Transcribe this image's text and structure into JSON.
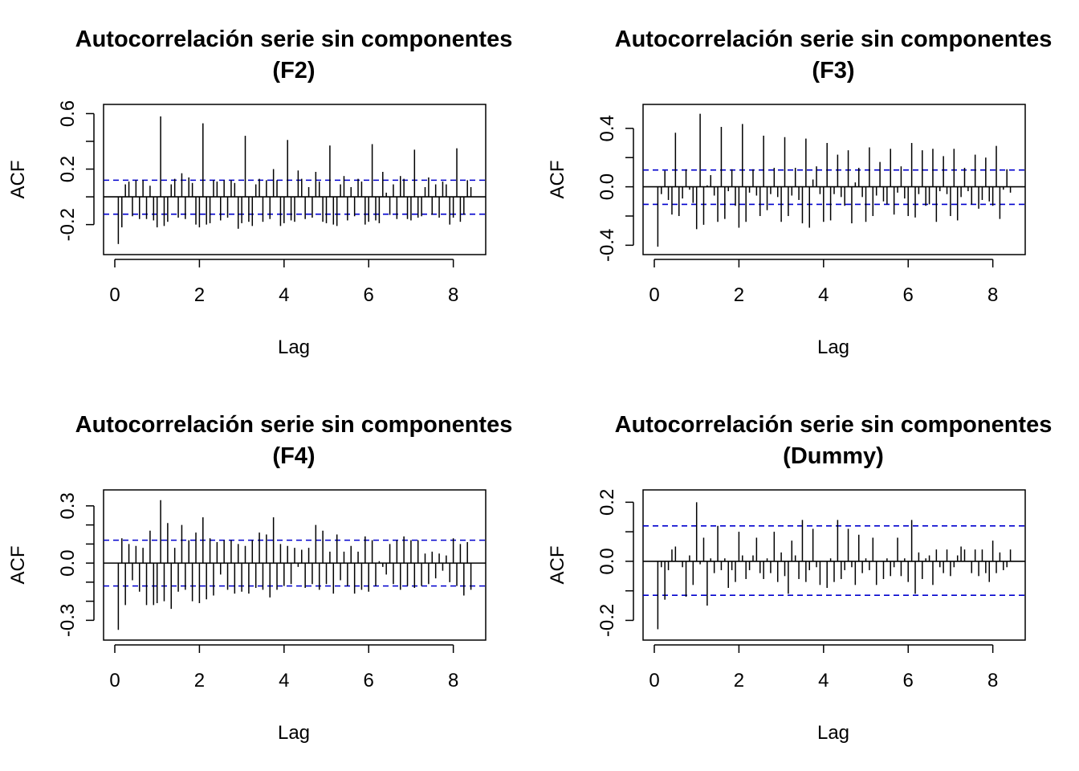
{
  "colors": {
    "bars": "#000000",
    "confidence_band": "#0000CD",
    "background": "#ffffff"
  },
  "chart_data": [
    {
      "type": "bar",
      "title": "Autocorrelación serie sin componentes",
      "subtitle": "(F2)",
      "xlabel": "Lag",
      "ylabel": "ACF",
      "xlim": [
        0,
        8.5
      ],
      "ylim": [
        -0.37,
        0.62
      ],
      "xticks": [
        0,
        2,
        4,
        6,
        8
      ],
      "xtick_labels": [
        "0",
        "2",
        "4",
        "6",
        "8"
      ],
      "yticks": [
        -0.2,
        0.2,
        0.6
      ],
      "ytick_labels": [
        "-0.2",
        "0.2",
        "0.6"
      ],
      "yticks_minor": [
        0.0,
        0.4
      ],
      "confidence_band": [
        -0.125,
        0.12
      ],
      "lags_step": 0.08333,
      "values": [
        -0.34,
        -0.22,
        0.09,
        0.11,
        -0.14,
        0.12,
        -0.16,
        0.12,
        -0.16,
        0.08,
        -0.17,
        -0.22,
        0.58,
        -0.21,
        -0.18,
        0.09,
        0.13,
        -0.15,
        0.17,
        -0.16,
        0.14,
        0.1,
        -0.2,
        -0.22,
        0.53,
        -0.2,
        -0.19,
        0.12,
        0.11,
        -0.17,
        0.12,
        -0.15,
        0.12,
        0.1,
        -0.23,
        -0.19,
        0.44,
        -0.18,
        -0.21,
        0.09,
        0.13,
        -0.18,
        0.12,
        -0.16,
        0.2,
        0.12,
        -0.21,
        -0.19,
        0.41,
        -0.17,
        -0.18,
        0.19,
        0.13,
        -0.16,
        0.07,
        -0.15,
        0.18,
        0.11,
        -0.18,
        -0.19,
        0.37,
        -0.2,
        -0.21,
        0.09,
        0.15,
        -0.17,
        0.07,
        -0.14,
        0.13,
        0.11,
        -0.2,
        -0.18,
        0.38,
        -0.17,
        -0.19,
        0.18,
        0.03,
        -0.13,
        0.09,
        -0.16,
        0.15,
        0.13,
        -0.16,
        -0.17,
        0.34,
        -0.15,
        -0.14,
        0.07,
        0.14,
        -0.13,
        0.09,
        -0.15,
        0.11,
        0.09,
        -0.2,
        -0.15,
        0.35,
        -0.18,
        -0.13,
        0.12,
        0.07
      ]
    },
    {
      "type": "bar",
      "title": "Autocorrelación serie sin componentes",
      "subtitle": "(F3)",
      "xlabel": "Lag",
      "ylabel": "ACF",
      "xlim": [
        0,
        8.5
      ],
      "ylim": [
        -0.42,
        0.52
      ],
      "xticks": [
        0,
        2,
        4,
        6,
        8
      ],
      "xtick_labels": [
        "0",
        "2",
        "4",
        "6",
        "8"
      ],
      "yticks": [
        -0.4,
        0.0,
        0.4
      ],
      "ytick_labels": [
        "-0.4",
        "0.0",
        "0.4"
      ],
      "yticks_minor": [
        -0.2,
        0.2
      ],
      "confidence_band": [
        -0.12,
        0.115
      ],
      "lags_step": 0.08333,
      "values": [
        -0.41,
        -0.05,
        0.11,
        -0.09,
        -0.19,
        0.37,
        -0.2,
        -0.08,
        0.12,
        -0.02,
        -0.11,
        -0.29,
        0.5,
        -0.26,
        0.01,
        0.08,
        -0.06,
        -0.24,
        0.41,
        -0.22,
        -0.03,
        0.12,
        -0.13,
        -0.28,
        0.43,
        -0.24,
        -0.04,
        0.12,
        -0.06,
        -0.2,
        0.35,
        -0.16,
        -0.05,
        0.13,
        -0.07,
        -0.24,
        0.34,
        -0.2,
        -0.06,
        0.13,
        -0.09,
        -0.25,
        0.33,
        -0.28,
        0.05,
        0.14,
        -0.05,
        -0.24,
        0.3,
        -0.23,
        -0.05,
        0.22,
        -0.07,
        -0.13,
        0.25,
        -0.25,
        0.03,
        0.13,
        -0.07,
        -0.24,
        0.27,
        -0.2,
        -0.06,
        0.17,
        -0.1,
        -0.12,
        0.26,
        -0.19,
        -0.04,
        0.14,
        -0.08,
        -0.2,
        0.3,
        -0.21,
        -0.05,
        0.25,
        -0.13,
        -0.12,
        0.26,
        -0.24,
        -0.03,
        0.21,
        -0.05,
        -0.2,
        0.26,
        -0.23,
        -0.07,
        0.13,
        -0.03,
        -0.12,
        0.22,
        -0.15,
        -0.09,
        0.2,
        -0.1,
        -0.13,
        0.28,
        -0.22,
        -0.02,
        0.12,
        -0.04
      ]
    },
    {
      "type": "bar",
      "title": "Autocorrelación serie sin componentes",
      "subtitle": "(F4)",
      "xlabel": "Lag",
      "ylabel": "ACF",
      "xlim": [
        0,
        8.5
      ],
      "ylim": [
        -0.37,
        0.35
      ],
      "xticks": [
        0,
        2,
        4,
        6,
        8
      ],
      "xtick_labels": [
        "0",
        "2",
        "4",
        "6",
        "8"
      ],
      "yticks": [
        -0.3,
        0.0,
        0.3
      ],
      "ytick_labels": [
        "-0.3",
        "0.0",
        "0.3"
      ],
      "yticks_minor": [
        -0.2,
        -0.1,
        0.1,
        0.2
      ],
      "confidence_band": [
        -0.12,
        0.12
      ],
      "lags_step": 0.08333,
      "values": [
        -0.35,
        0.13,
        -0.22,
        0.1,
        -0.09,
        0.09,
        -0.15,
        0.08,
        -0.22,
        0.17,
        -0.22,
        -0.21,
        0.33,
        -0.2,
        0.21,
        -0.24,
        0.08,
        -0.15,
        0.2,
        -0.14,
        0.12,
        -0.2,
        0.16,
        -0.21,
        0.24,
        -0.19,
        0.13,
        -0.17,
        0.11,
        -0.06,
        0.12,
        -0.14,
        0.12,
        -0.16,
        0.1,
        -0.15,
        0.09,
        -0.16,
        0.12,
        -0.13,
        0.16,
        -0.14,
        0.15,
        -0.18,
        0.24,
        -0.14,
        0.1,
        -0.12,
        0.09,
        -0.11,
        0.08,
        -0.02,
        0.07,
        -0.13,
        0.08,
        -0.11,
        0.2,
        -0.14,
        0.17,
        -0.11,
        0.06,
        -0.16,
        0.15,
        -0.09,
        0.06,
        -0.12,
        0.09,
        -0.16,
        0.06,
        -0.14,
        0.14,
        -0.15,
        0.12,
        -0.12,
        0.01,
        -0.02,
        -0.06,
        0.1,
        -0.11,
        0.12,
        -0.14,
        0.14,
        -0.12,
        0.12,
        -0.13,
        0.12,
        -0.12,
        0.05,
        -0.11,
        0.06,
        -0.08,
        0.05,
        -0.04,
        0.04,
        -0.1,
        0.13,
        -0.12,
        0.1,
        -0.17,
        0.11,
        -0.14
      ]
    },
    {
      "type": "bar",
      "title": "Autocorrelación serie sin componentes",
      "subtitle": "(Dummy)",
      "xlabel": "Lag",
      "ylabel": "ACF",
      "xlim": [
        0,
        8.5
      ],
      "ylim": [
        -0.245,
        0.22
      ],
      "xticks": [
        0,
        2,
        4,
        6,
        8
      ],
      "xtick_labels": [
        "0",
        "2",
        "4",
        "6",
        "8"
      ],
      "yticks": [
        -0.2,
        0.0,
        0.2
      ],
      "ytick_labels": [
        "-0.2",
        "0.0",
        "0.2"
      ],
      "yticks_minor": [
        -0.1,
        0.1
      ],
      "confidence_band": [
        -0.115,
        0.12
      ],
      "lags_step": 0.08333,
      "values": [
        -0.23,
        -0.02,
        -0.13,
        -0.03,
        0.04,
        0.05,
        0.0,
        -0.02,
        -0.12,
        0.02,
        -0.08,
        0.2,
        -0.01,
        0.08,
        -0.15,
        0.01,
        -0.04,
        0.12,
        -0.03,
        0.01,
        -0.09,
        -0.03,
        -0.07,
        0.1,
        0.02,
        -0.06,
        -0.03,
        0.02,
        0.08,
        -0.04,
        -0.06,
        0.01,
        -0.04,
        0.1,
        -0.07,
        0.03,
        -0.05,
        -0.11,
        0.07,
        0.02,
        -0.06,
        0.14,
        -0.07,
        -0.03,
        0.11,
        -0.02,
        -0.08,
        0.0,
        -0.09,
        0.01,
        -0.07,
        0.14,
        -0.06,
        -0.03,
        0.11,
        -0.02,
        -0.08,
        0.09,
        -0.04,
        0.01,
        -0.03,
        0.08,
        -0.08,
        0.0,
        -0.06,
        0.01,
        -0.05,
        -0.02,
        0.08,
        -0.05,
        0.01,
        -0.07,
        0.14,
        -0.11,
        0.03,
        -0.06,
        0.01,
        0.02,
        -0.08,
        0.04,
        -0.02,
        -0.04,
        0.04,
        -0.05,
        -0.02,
        0.02,
        0.05,
        0.04,
        0.0,
        -0.04,
        0.04,
        -0.05,
        0.04,
        -0.04,
        -0.07,
        0.07,
        -0.04,
        0.03,
        -0.03,
        -0.02,
        0.04
      ]
    }
  ]
}
